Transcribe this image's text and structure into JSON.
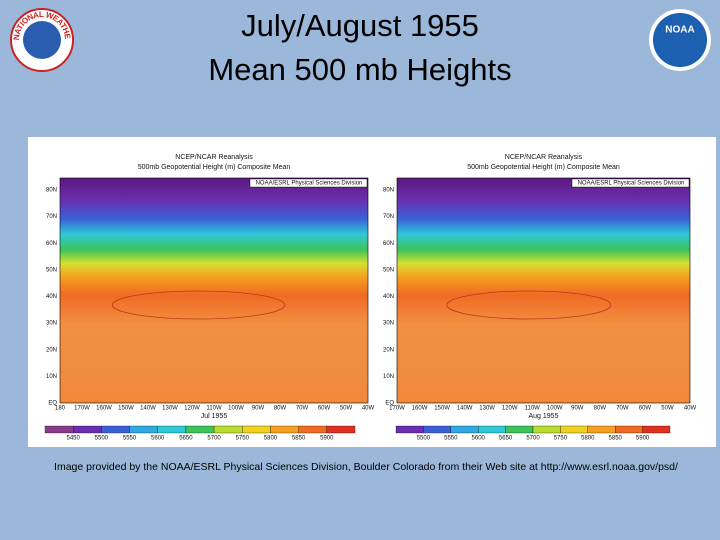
{
  "title": [
    "July/August 1955",
    "Mean 500 mb Heights"
  ],
  "logos": {
    "nws": "NATIONAL WEATHER SERVICE",
    "noaa": "NOAA"
  },
  "panels": [
    {
      "header": [
        "NCEP/NCAR Reanalysis",
        "500mb Geopotential Height (m) Composite Mean"
      ],
      "source": "NOAA/ESRL Physical Sciences Division",
      "lat_labels": [
        "80N",
        "70N",
        "60N",
        "50N",
        "40N",
        "30N",
        "20N",
        "10N",
        "EQ"
      ],
      "lon_labels": [
        "180",
        "170W",
        "160W",
        "150W",
        "140W",
        "130W",
        "120W",
        "110W",
        "100W",
        "90W",
        "80W",
        "70W",
        "60W",
        "50W",
        "40W"
      ],
      "date": "Jul 1955",
      "colorbar": [
        5450,
        5500,
        5550,
        5600,
        5650,
        5700,
        5750,
        5800,
        5850,
        5900
      ]
    },
    {
      "header": [
        "NCEP/NCAR Reanalysis",
        "500mb Geopotential Height (m) Composite Mean"
      ],
      "source": "NOAA/ESRL Physical Sciences Division",
      "lat_labels": [
        "80N",
        "70N",
        "60N",
        "50N",
        "40N",
        "30N",
        "20N",
        "10N",
        "EQ"
      ],
      "lon_labels": [
        "170W",
        "160W",
        "150W",
        "140W",
        "130W",
        "120W",
        "110W",
        "100W",
        "90W",
        "80W",
        "70W",
        "60W",
        "50W",
        "40W"
      ],
      "date": "Aug 1955",
      "colorbar": [
        5500,
        5550,
        5600,
        5650,
        5700,
        5750,
        5800,
        5850,
        5900
      ]
    }
  ],
  "caption": "Image provided by the NOAA/ESRL Physical Sciences Division, Boulder Colorado from their Web site at http://www.esrl.noaa.gov/psd/"
}
